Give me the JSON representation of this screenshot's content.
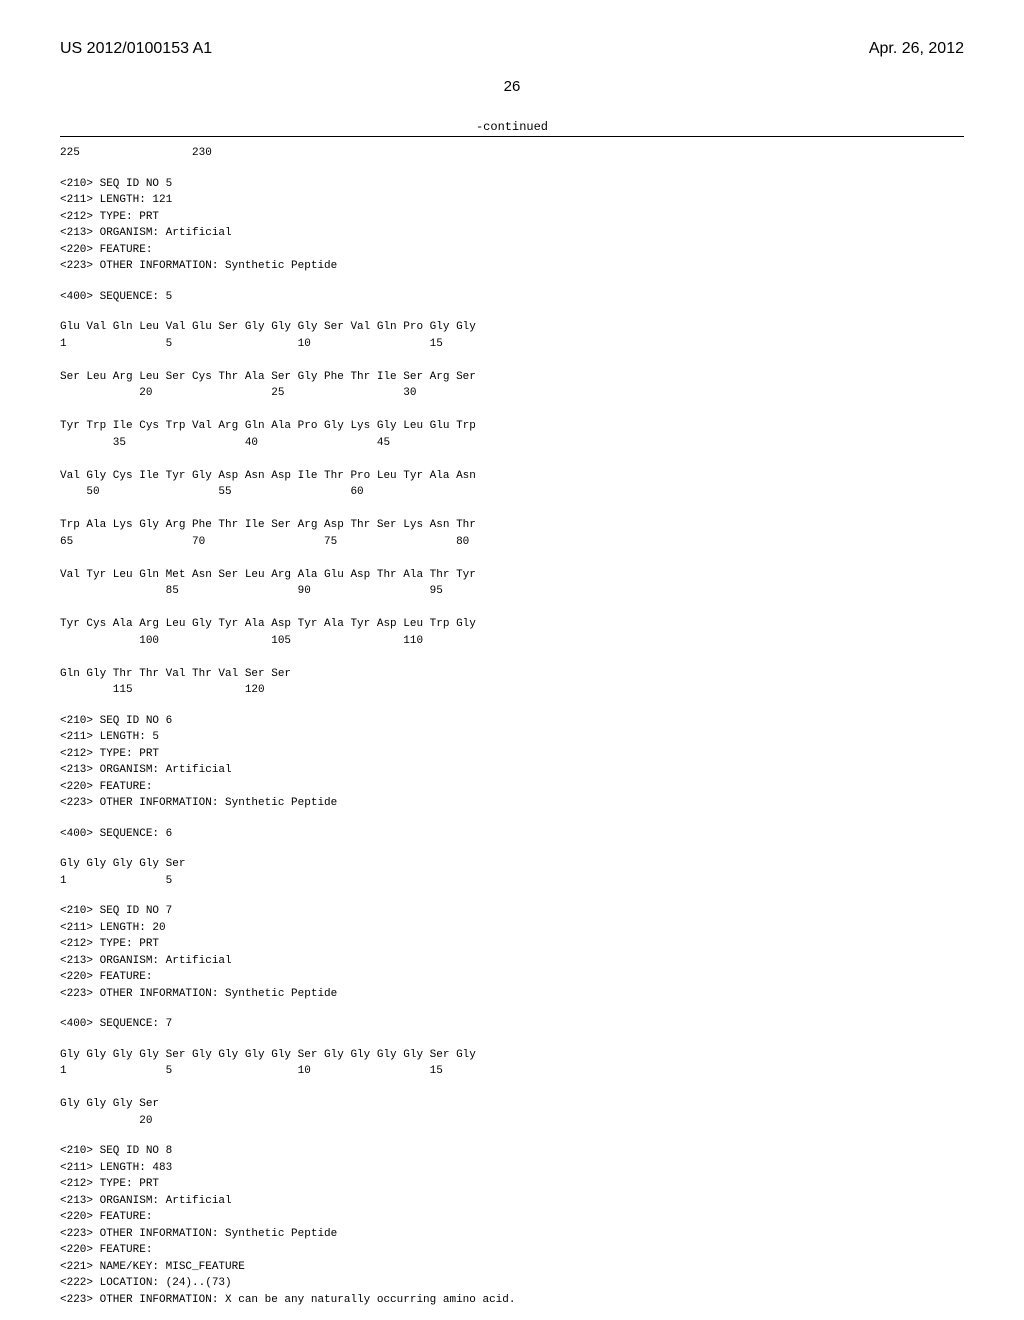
{
  "header": {
    "pub_id": "US 2012/0100153 A1",
    "pub_date": "Apr. 26, 2012",
    "page_num": "26",
    "continued": "-continued"
  },
  "tail": {
    "line": "225                 230"
  },
  "seq5": {
    "meta": "<210> SEQ ID NO 5\n<211> LENGTH: 121\n<212> TYPE: PRT\n<213> ORGANISM: Artificial\n<220> FEATURE:\n<223> OTHER INFORMATION: Synthetic Peptide",
    "seq_label": "<400> SEQUENCE: 5",
    "lines": [
      "Glu Val Gln Leu Val Glu Ser Gly Gly Gly Ser Val Gln Pro Gly Gly",
      "1               5                   10                  15",
      "",
      "Ser Leu Arg Leu Ser Cys Thr Ala Ser Gly Phe Thr Ile Ser Arg Ser",
      "            20                  25                  30",
      "",
      "Tyr Trp Ile Cys Trp Val Arg Gln Ala Pro Gly Lys Gly Leu Glu Trp",
      "        35                  40                  45",
      "",
      "Val Gly Cys Ile Tyr Gly Asp Asn Asp Ile Thr Pro Leu Tyr Ala Asn",
      "    50                  55                  60",
      "",
      "Trp Ala Lys Gly Arg Phe Thr Ile Ser Arg Asp Thr Ser Lys Asn Thr",
      "65                  70                  75                  80",
      "",
      "Val Tyr Leu Gln Met Asn Ser Leu Arg Ala Glu Asp Thr Ala Thr Tyr",
      "                85                  90                  95",
      "",
      "Tyr Cys Ala Arg Leu Gly Tyr Ala Asp Tyr Ala Tyr Asp Leu Trp Gly",
      "            100                 105                 110",
      "",
      "Gln Gly Thr Thr Val Thr Val Ser Ser",
      "        115                 120"
    ]
  },
  "seq6": {
    "meta": "<210> SEQ ID NO 6\n<211> LENGTH: 5\n<212> TYPE: PRT\n<213> ORGANISM: Artificial\n<220> FEATURE:\n<223> OTHER INFORMATION: Synthetic Peptide",
    "seq_label": "<400> SEQUENCE: 6",
    "lines": [
      "Gly Gly Gly Gly Ser",
      "1               5"
    ]
  },
  "seq7": {
    "meta": "<210> SEQ ID NO 7\n<211> LENGTH: 20\n<212> TYPE: PRT\n<213> ORGANISM: Artificial\n<220> FEATURE:\n<223> OTHER INFORMATION: Synthetic Peptide",
    "seq_label": "<400> SEQUENCE: 7",
    "lines": [
      "Gly Gly Gly Gly Ser Gly Gly Gly Gly Ser Gly Gly Gly Gly Ser Gly",
      "1               5                   10                  15",
      "",
      "Gly Gly Gly Ser",
      "            20"
    ]
  },
  "seq8": {
    "meta": "<210> SEQ ID NO 8\n<211> LENGTH: 483\n<212> TYPE: PRT\n<213> ORGANISM: Artificial\n<220> FEATURE:\n<223> OTHER INFORMATION: Synthetic Peptide\n<220> FEATURE:\n<221> NAME/KEY: MISC_FEATURE\n<222> LOCATION: (24)..(73)\n<223> OTHER INFORMATION: X can be any naturally occurring amino acid."
  }
}
